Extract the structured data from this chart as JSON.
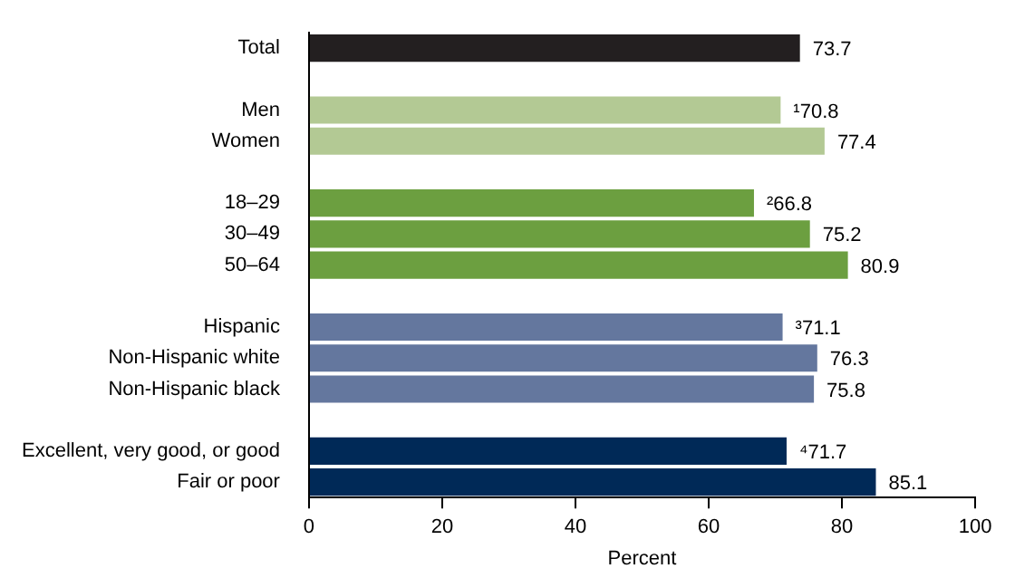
{
  "chart_data": {
    "type": "bar",
    "orientation": "horizontal",
    "xlabel": "Percent",
    "categories": [
      "Total",
      null,
      "Men",
      "Women",
      null,
      "18–29",
      "30–49",
      "50–64",
      null,
      "Hispanic",
      "Non-Hispanic white",
      "Non-Hispanic black",
      null,
      "Excellent, very good, or good",
      "Fair or poor"
    ],
    "values": [
      73.7,
      null,
      70.8,
      77.4,
      null,
      66.8,
      75.2,
      80.9,
      null,
      71.1,
      76.3,
      75.8,
      null,
      71.7,
      85.1
    ],
    "value_labels": [
      "73.7",
      null,
      "¹70.8",
      "77.4",
      null,
      "²66.8",
      "75.2",
      "80.9",
      null,
      "³71.1",
      "76.3",
      "75.8",
      null,
      "⁴71.7",
      "85.1"
    ],
    "colors": [
      "#231f20",
      null,
      "#b3c994",
      "#b3c994",
      null,
      "#6c9f40",
      "#6c9f40",
      "#6c9f40",
      null,
      "#64779e",
      "#64779e",
      "#64779e",
      null,
      "#002957",
      "#002957"
    ],
    "xlim": [
      0,
      100
    ],
    "xticks": [
      0,
      20,
      40,
      60,
      80,
      100
    ]
  }
}
